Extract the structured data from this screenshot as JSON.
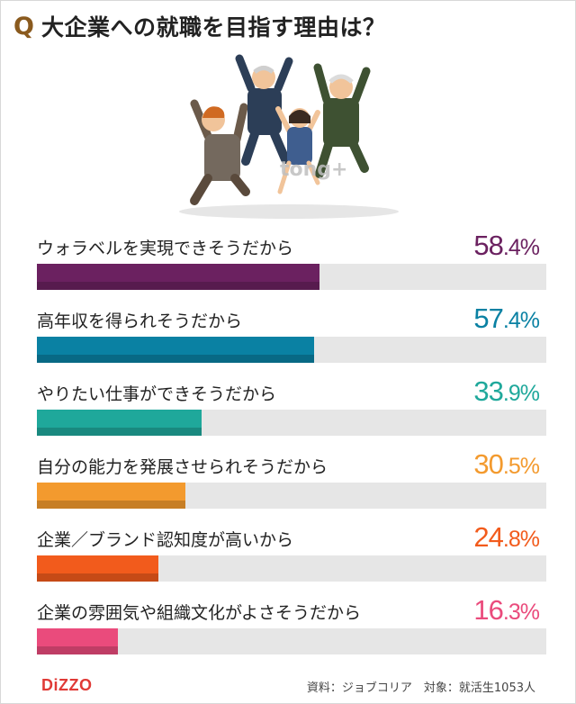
{
  "title": {
    "q": "Q",
    "text": "大企業への就職を目指す理由は？"
  },
  "watermark": "tong+",
  "chart_data": {
    "type": "bar",
    "orientation": "horizontal",
    "unit": "%",
    "xlim": [
      0,
      100
    ],
    "categories": [
      "ウォラベルを実現できそうだから",
      "高年収を得られそうだから",
      "やりたい仕事ができそうだから",
      "自分の能力を発展させられそうだから",
      "企業／ブランド認知度が高いから",
      "企業の雰囲気や組織文化がよさそうだから"
    ],
    "values": [
      58.4,
      57.4,
      33.9,
      30.5,
      24.8,
      16.3
    ],
    "value_int": [
      "58",
      "57",
      "33",
      "30",
      "24",
      "16"
    ],
    "value_dec": [
      ".4%",
      ".4%",
      ".9%",
      ".5%",
      ".8%",
      ".3%"
    ],
    "colors": [
      "#6b2160",
      "#0a81a3",
      "#1fa89b",
      "#f39a2e",
      "#f25b1c",
      "#ea4b7c"
    ]
  },
  "footer": {
    "logo": "DiZZO",
    "source": "資料：ジョブコリア　対象：就活生1053人"
  }
}
